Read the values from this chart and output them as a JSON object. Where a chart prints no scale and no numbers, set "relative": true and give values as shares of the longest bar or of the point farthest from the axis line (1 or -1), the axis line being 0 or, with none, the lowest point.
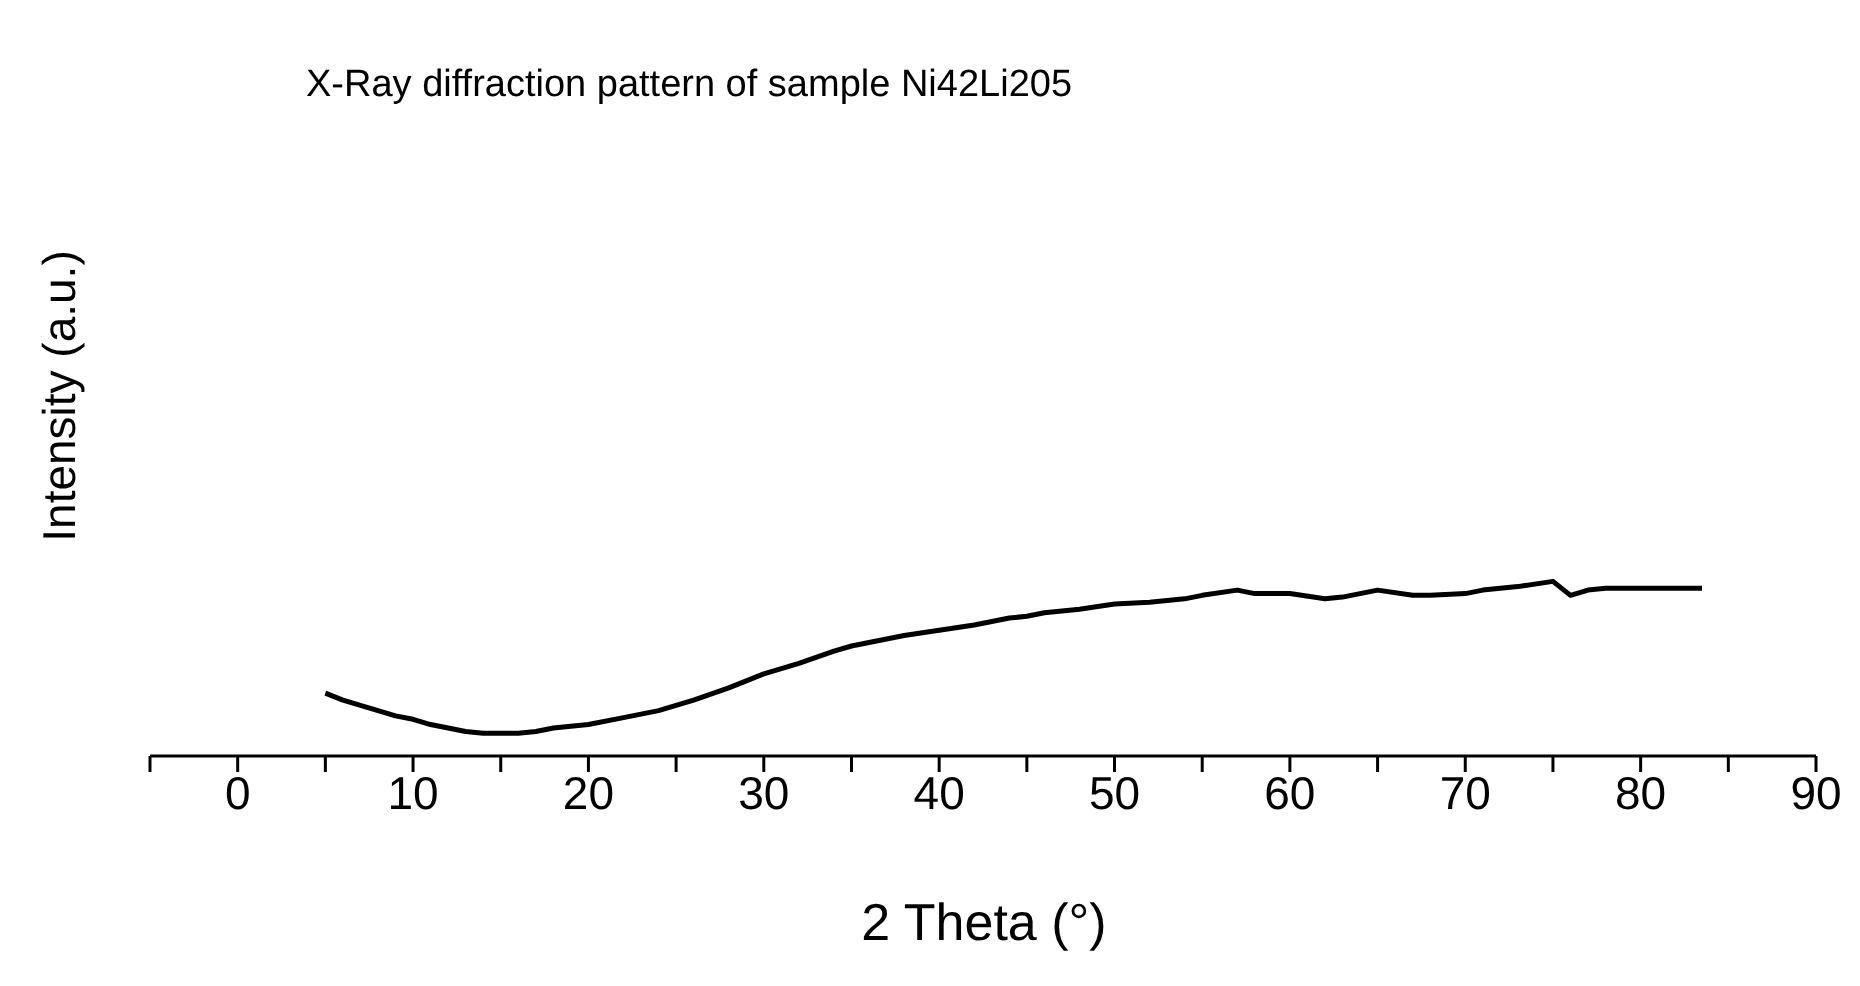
{
  "chart_data": {
    "type": "line",
    "title": "X-Ray diffraction pattern of sample Ni42Li205",
    "xlabel": "2 Theta (°)",
    "ylabel": "Intensity (a.u.)",
    "relative": true,
    "color": "#000000",
    "x": [
      5,
      6,
      7,
      8,
      9,
      10,
      11,
      12,
      13,
      14,
      15,
      16,
      17,
      18,
      19,
      20,
      22,
      24,
      25,
      26,
      28,
      30,
      32,
      34,
      35,
      36,
      38,
      40,
      42,
      44,
      45,
      46,
      48,
      50,
      52,
      54,
      55,
      57,
      58,
      60,
      62,
      63,
      65,
      67,
      68,
      70,
      71,
      73,
      75,
      76,
      77,
      78,
      80,
      82,
      83.5
    ],
    "values": [
      0.36,
      0.32,
      0.29,
      0.26,
      0.23,
      0.21,
      0.18,
      0.16,
      0.14,
      0.13,
      0.13,
      0.13,
      0.14,
      0.16,
      0.17,
      0.18,
      0.22,
      0.26,
      0.29,
      0.32,
      0.39,
      0.47,
      0.53,
      0.6,
      0.63,
      0.65,
      0.69,
      0.72,
      0.75,
      0.79,
      0.8,
      0.82,
      0.84,
      0.87,
      0.88,
      0.9,
      0.92,
      0.95,
      0.93,
      0.93,
      0.9,
      0.91,
      0.95,
      0.92,
      0.92,
      0.93,
      0.95,
      0.97,
      1.0,
      0.92,
      0.95,
      0.96,
      0.96,
      0.96,
      0.96
    ],
    "xlim": [
      -5,
      90
    ],
    "xticks": [
      {
        "value": -5,
        "label": null
      },
      0,
      {
        "value": 5,
        "label": null
      },
      10,
      {
        "value": 15,
        "label": null
      },
      20,
      {
        "value": 25,
        "label": null
      },
      30,
      {
        "value": 35,
        "label": null
      },
      40,
      {
        "value": 45,
        "label": null
      },
      50,
      {
        "value": 55,
        "label": null
      },
      60,
      {
        "value": 65,
        "label": null
      },
      70,
      {
        "value": 75,
        "label": null
      },
      80,
      {
        "value": 85,
        "label": null
      },
      90
    ]
  }
}
